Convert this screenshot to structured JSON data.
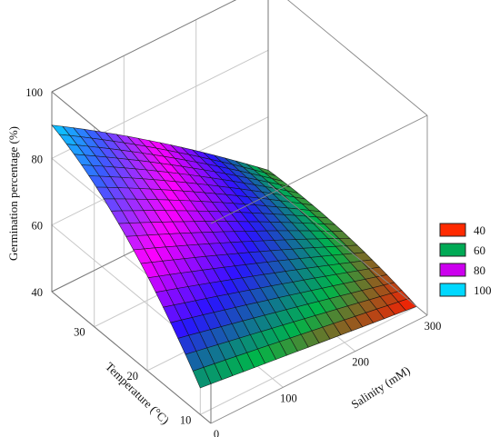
{
  "chart_data": {
    "type": "surface",
    "title": "",
    "xlabel": "Salinity (mM)",
    "ylabel": "Temperature (°C)",
    "zlabel": "Germination percentage (%)",
    "x_ticks": [
      "0",
      "100",
      "200",
      "300"
    ],
    "y_ticks": [
      "10",
      "20",
      "30"
    ],
    "z_ticks": [
      "40",
      "60",
      "80",
      "100"
    ],
    "xlim": [
      0,
      300
    ],
    "ylim": [
      8,
      38
    ],
    "zlim": [
      40,
      100
    ],
    "grid": true,
    "legend_position": "right",
    "legend": [
      {
        "label": "40",
        "color": "#ff2a00"
      },
      {
        "label": "60",
        "color": "#00aa55"
      },
      {
        "label": "80",
        "color": "#cc00ee"
      },
      {
        "label": "100",
        "color": "#00d8ff"
      }
    ],
    "surface": {
      "salinity": [
        0,
        300
      ],
      "temperature": [
        10,
        38
      ],
      "grid_x": 20,
      "grid_y": 20,
      "corner_values": {
        "salinity_0_temp_38": 90,
        "salinity_300_temp_38": 44,
        "salinity_0_temp_10": 48,
        "salinity_300_temp_10": 40,
        "peak": 91
      },
      "color_stops": [
        {
          "value": 40,
          "color": "#ff1a00"
        },
        {
          "value": 47,
          "color": "#00b54a"
        },
        {
          "value": 58,
          "color": "#2a14ff"
        },
        {
          "value": 70,
          "color": "#ff00ff"
        },
        {
          "value": 82,
          "color": "#3b5bff"
        },
        {
          "value": 91,
          "color": "#00e0ff"
        }
      ]
    }
  }
}
